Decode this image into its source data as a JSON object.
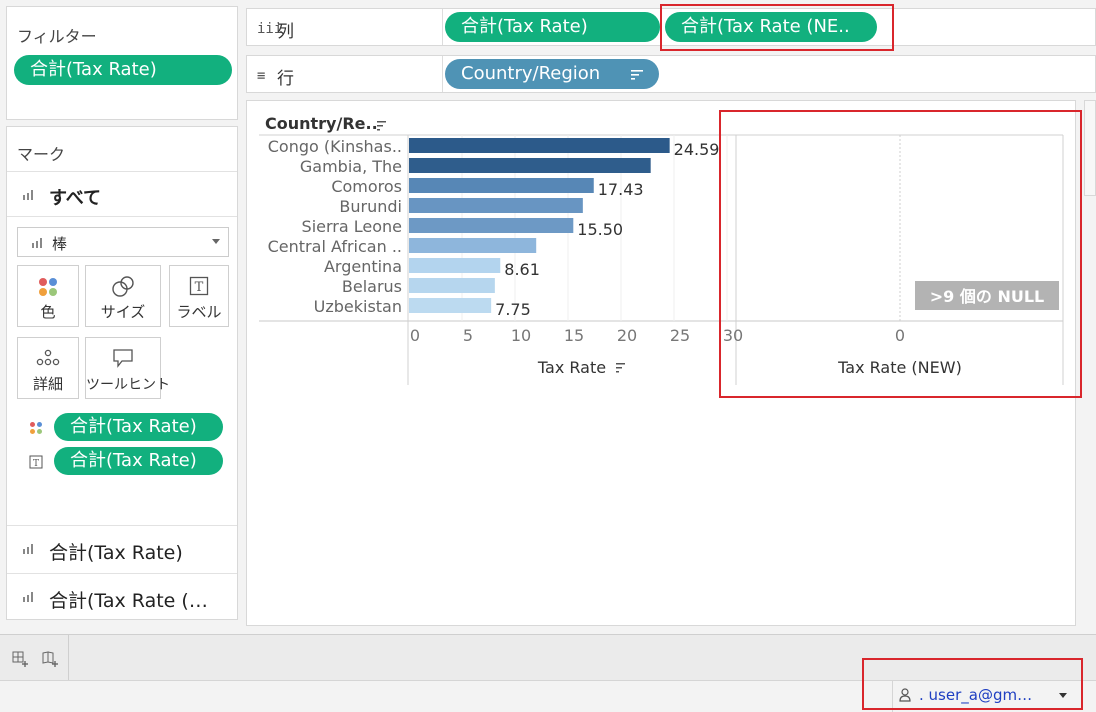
{
  "filters": {
    "title": "フィルター",
    "pill": "合計(Tax Rate)"
  },
  "marks": {
    "title": "マーク",
    "all_label": "すべて",
    "mark_type": "棒",
    "buttons": {
      "color": "色",
      "size": "サイズ",
      "label": "ラベル",
      "detail": "詳細",
      "tooltip": "ツールヒント"
    },
    "encodings": [
      {
        "icon": "color-dots-icon",
        "pill": "合計(Tax Rate)"
      },
      {
        "icon": "text-label-icon",
        "pill": "合計(Tax Rate)"
      }
    ],
    "measures": [
      "合計(Tax Rate)",
      "合計(Tax Rate (…"
    ]
  },
  "shelves": {
    "columns": {
      "label": "列",
      "icon": "iii",
      "pills": [
        "合計(Tax Rate)",
        "合計(Tax Rate (NE.."
      ]
    },
    "rows": {
      "label": "行",
      "icon": "≡",
      "pills": [
        "Country/Region"
      ]
    }
  },
  "view": {
    "row_header": "Country/Re..",
    "null_badge": ">9 個の NULL",
    "axis1_title": "Tax Rate",
    "axis2_title": "Tax Rate (NEW)",
    "axis2_tick": "0"
  },
  "chart_data": {
    "type": "bar",
    "orientation": "horizontal",
    "categories": [
      "Congo (Kinshas..",
      "Gambia, The",
      "Comoros",
      "Burundi",
      "Sierra Leone",
      "Central African ..",
      "Argentina",
      "Belarus",
      "Uzbekistan"
    ],
    "values": [
      24.59,
      22.8,
      17.43,
      16.4,
      15.5,
      12.0,
      8.61,
      8.1,
      7.75
    ],
    "data_labels": [
      "24.59",
      "",
      "17.43",
      "",
      "15.50",
      "",
      "8.61",
      "",
      "7.75"
    ],
    "xlabel": "Tax Rate",
    "xlim": [
      0,
      30
    ],
    "xticks": [
      0,
      5,
      10,
      15,
      20,
      25,
      30
    ],
    "colors": [
      "#2c5a8a",
      "#2f5d8c",
      "#5787b6",
      "#6895c2",
      "#6d99c5",
      "#8eb6dc",
      "#b3d4ee",
      "#b6d6ee",
      "#bcdaf0"
    ],
    "grid": true
  },
  "status": {
    "user": ". user_a@gm…"
  },
  "colors": {
    "green_pill": "#12b07e",
    "blue_pill": "#4f93b5",
    "highlight_red": "#d9262c"
  }
}
